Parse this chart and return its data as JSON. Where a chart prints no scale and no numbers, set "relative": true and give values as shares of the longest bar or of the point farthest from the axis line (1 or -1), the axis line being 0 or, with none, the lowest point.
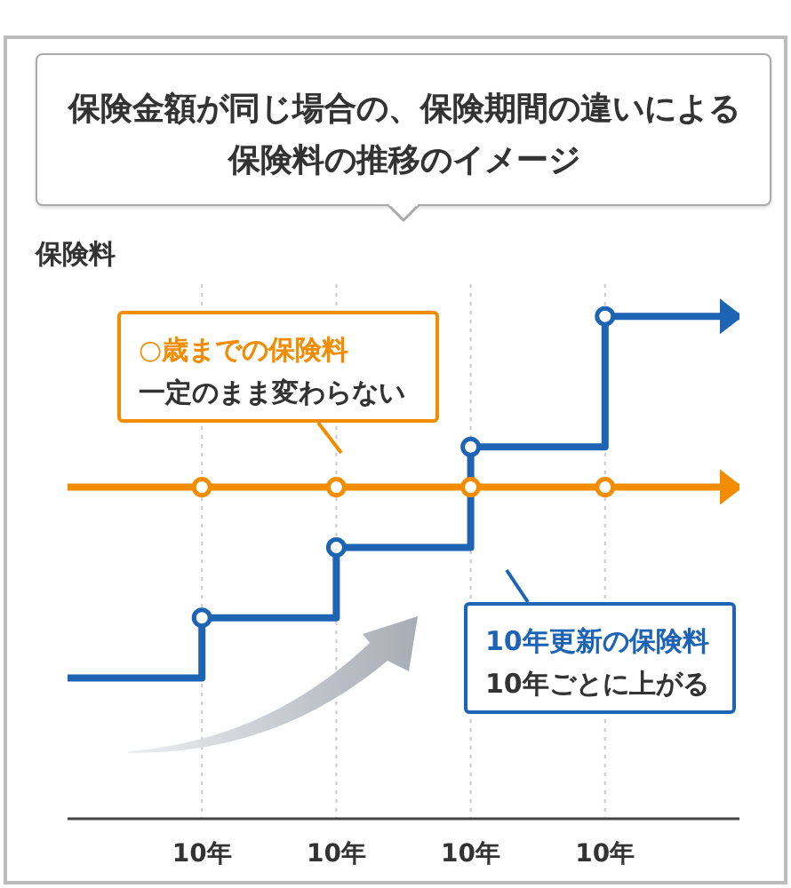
{
  "chart_data": {
    "type": "line",
    "title": "保険金額が同じ場合の、保険期間の違いによる保険料の推移のイメージ",
    "ylabel": "保険料",
    "relative": true,
    "categories": [
      null,
      "10年",
      "10年",
      "10年",
      "10年",
      null
    ],
    "grid": "x",
    "marker": "circle",
    "series": [
      {
        "name": "10年更新の保険料",
        "type": "step",
        "color": "#1e64b4",
        "values": [
          0.28,
          0.4,
          0.54,
          0.74,
          1,
          1
        ]
      },
      {
        "name": "○歳までの保険料",
        "type": "line",
        "color": "#f28c00",
        "values": [
          0.66,
          0.66,
          0.66,
          0.66,
          0.66,
          0.66
        ]
      }
    ],
    "annotations": [
      "10年ごとに上がる",
      "一定のまま変わらない"
    ]
  }
}
